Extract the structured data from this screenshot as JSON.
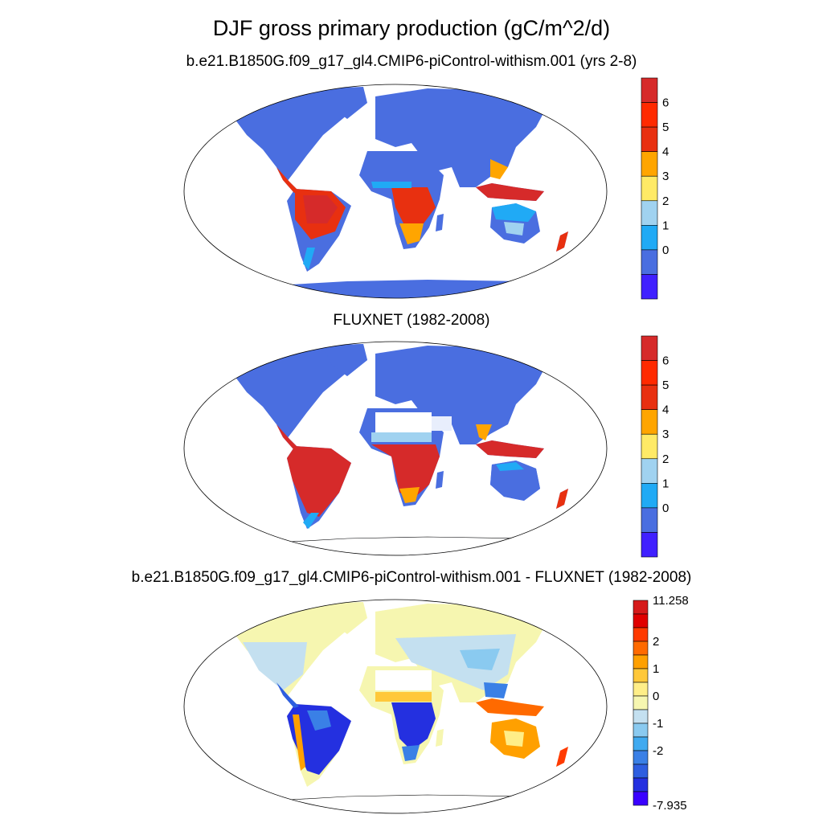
{
  "figure": {
    "title": "DJF gross primary production (gC/m^2/d)"
  },
  "panels": [
    {
      "title": "b.e21.B1850G.f09_g17_gl4.CMIP6-piControl-withism.001 (yrs 2-8)",
      "colorbar": {
        "tick_labels": [
          "6",
          "5",
          "4",
          "3",
          "2",
          "1",
          "0"
        ],
        "colors_top_to_bottom": [
          "#d62a2a",
          "#ff2a00",
          "#e83010",
          "#ffa500",
          "#ffea66",
          "#a0d2f0",
          "#20aaf5",
          "#4a6ee0",
          "#4020ff"
        ]
      }
    },
    {
      "title": "FLUXNET (1982-2008)",
      "colorbar": {
        "tick_labels": [
          "6",
          "5",
          "4",
          "3",
          "2",
          "1",
          "0"
        ],
        "colors_top_to_bottom": [
          "#d62a2a",
          "#ff2a00",
          "#e83010",
          "#ffa500",
          "#ffea66",
          "#a0d2f0",
          "#20aaf5",
          "#4a6ee0",
          "#4020ff"
        ]
      }
    },
    {
      "title": "b.e21.B1850G.f09_g17_gl4.CMIP6-piControl-withism.001 - FLUXNET (1982-2008)",
      "colorbar": {
        "max_label": "11.258",
        "min_label": "-7.935",
        "tick_labels": [
          "2",
          "1",
          "0",
          "-1",
          "-2"
        ],
        "colors_top_to_bottom": [
          "#d61a1a",
          "#e00000",
          "#ff3a00",
          "#ff6a00",
          "#ffa000",
          "#ffc83a",
          "#ffee88",
          "#f6f6b0",
          "#c4e0f0",
          "#8acaf0",
          "#40aaf0",
          "#3a80e6",
          "#2e5ee0",
          "#2430e0",
          "#3a00ff"
        ]
      }
    }
  ]
}
